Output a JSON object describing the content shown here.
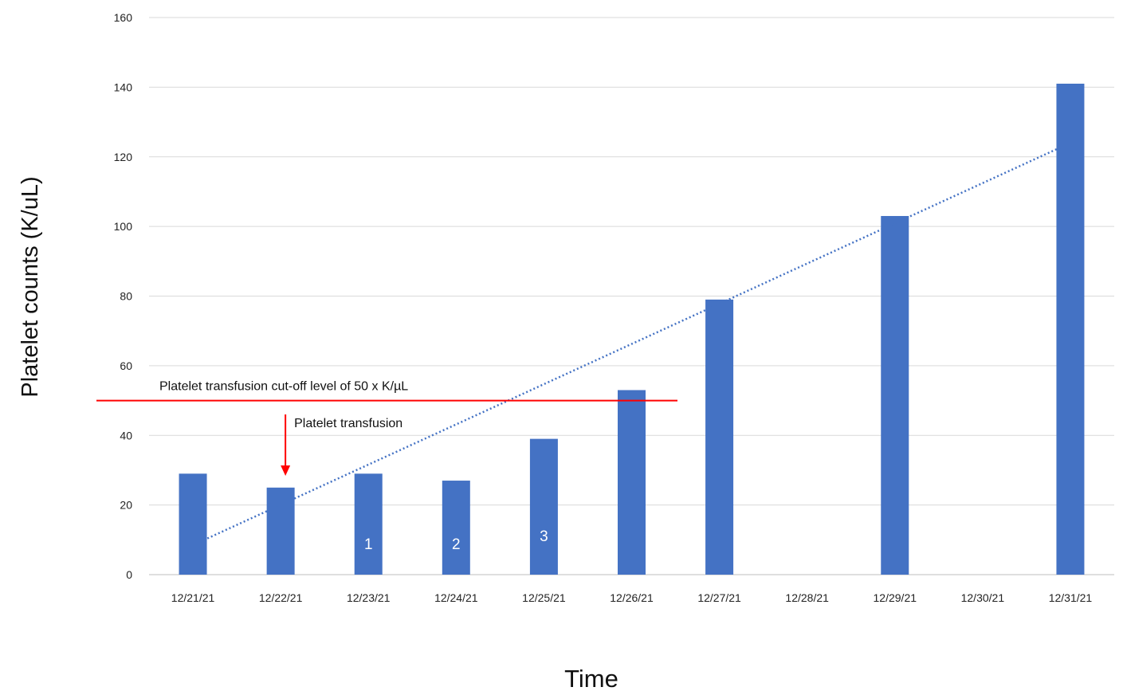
{
  "chart_data": {
    "type": "bar",
    "title": "",
    "xlabel": "Time",
    "ylabel": "Platelet counts (K/uL)",
    "ylim": [
      0,
      160
    ],
    "yticks": [
      0,
      20,
      40,
      60,
      80,
      100,
      120,
      140,
      160
    ],
    "grid": true,
    "categories": [
      "12/21/21",
      "12/22/21",
      "12/23/21",
      "12/24/21",
      "12/25/21",
      "12/26/21",
      "12/27/21",
      "12/28/21",
      "12/29/21",
      "12/30/21",
      "12/31/21"
    ],
    "values": [
      29,
      25,
      29,
      27,
      39,
      53,
      79,
      null,
      103,
      null,
      141
    ],
    "bar_labels": [
      "",
      "",
      "1",
      "2",
      "3",
      "",
      "",
      "",
      "",
      "",
      ""
    ],
    "trendline": {
      "style": "dotted",
      "from": {
        "category": "12/21/21",
        "value": 8.5
      },
      "to": {
        "category": "12/31/21",
        "value": 124
      }
    },
    "reference_line": {
      "value": 50,
      "label": "Platelet transfusion cut-off level of 50 x K/µL"
    },
    "annotation": {
      "category": "12/22/21",
      "label": "Platelet transfusion"
    },
    "colors": {
      "bar": "#4472C4",
      "trendline": "#4472C4",
      "reference": "#FF0000",
      "grid": "#D9D9D9",
      "bar_label": "#FFFFFF"
    }
  }
}
